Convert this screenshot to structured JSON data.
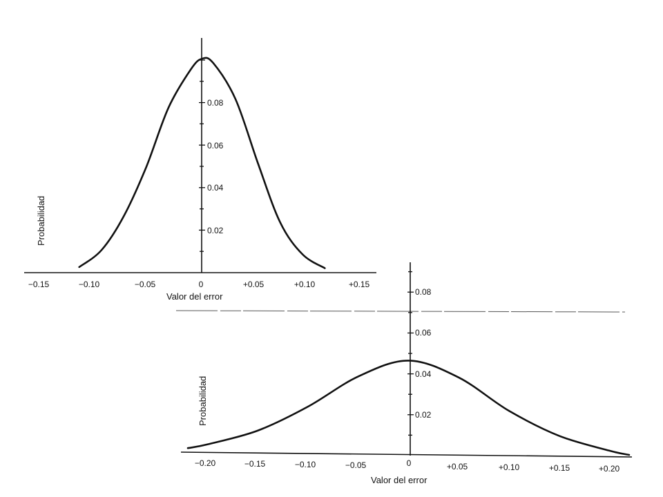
{
  "chart_data": [
    {
      "type": "line",
      "xlabel": "Valor del error",
      "ylabel": "Probabilidad",
      "xlim": [
        -0.15,
        0.15
      ],
      "ylim": [
        0,
        0.1
      ],
      "x_ticks": [
        "−0.15",
        "−0.10",
        "−0.05",
        "0",
        "+0.05",
        "+0.10",
        "+0.15"
      ],
      "y_ticks": [
        "0.02",
        "0.04",
        "0.06",
        "0.08"
      ],
      "grid": false,
      "series": [
        {
          "x": [
            -0.11,
            -0.09,
            -0.07,
            -0.05,
            -0.03,
            -0.01,
            0,
            0.01,
            0.03,
            0.05,
            0.07,
            0.09,
            0.11
          ],
          "y": [
            0.001,
            0.009,
            0.025,
            0.048,
            0.076,
            0.094,
            0.099,
            0.097,
            0.08,
            0.05,
            0.022,
            0.007,
            0.0005
          ]
        }
      ]
    },
    {
      "type": "line",
      "xlabel": "Valor del error",
      "ylabel": "Probabilidad",
      "xlim": [
        -0.22,
        0.22
      ],
      "ylim": [
        0,
        0.09
      ],
      "x_ticks": [
        "−0.20",
        "−0.15",
        "−0.10",
        "−0.05",
        "0",
        "+0.05",
        "+0.10",
        "+0.15",
        "+0.20"
      ],
      "y_ticks": [
        "0.02",
        "0.04",
        "0.06",
        "0.08"
      ],
      "grid": false,
      "series": [
        {
          "x": [
            -0.22,
            -0.2,
            -0.15,
            -0.1,
            -0.05,
            0,
            0.05,
            0.1,
            0.15,
            0.2,
            0.22
          ],
          "y": [
            0.002,
            0.004,
            0.011,
            0.023,
            0.038,
            0.046,
            0.038,
            0.022,
            0.01,
            0.003,
            0.001
          ]
        }
      ]
    }
  ]
}
